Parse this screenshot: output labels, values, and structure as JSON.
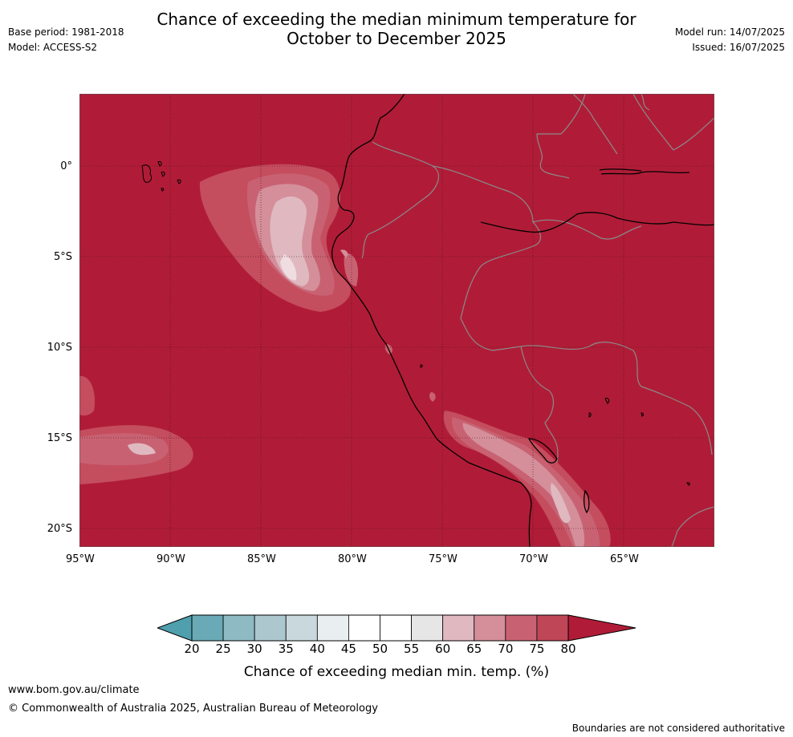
{
  "header": {
    "title_line1": "Chance of exceeding the median minimum temperature for",
    "title_line2": "October to December 2025",
    "base_period": "Base period: 1981-2018",
    "model": "Model: ACCESS-S2",
    "model_run": "Model run: 14/07/2025",
    "issued": "Issued: 16/07/2025"
  },
  "map": {
    "lat_labels": [
      "0°",
      "5°S",
      "10°S",
      "15°S",
      "20°S"
    ],
    "lon_labels": [
      "95°W",
      "90°W",
      "85°W",
      "80°W",
      "75°W",
      "70°W",
      "65°W"
    ],
    "background_color": "#b01c37"
  },
  "colorbar": {
    "ticks": [
      "20",
      "25",
      "30",
      "35",
      "40",
      "45",
      "50",
      "55",
      "60",
      "65",
      "70",
      "75",
      "80"
    ],
    "colors": [
      "#6aa9b6",
      "#8ebac4",
      "#acc8ce",
      "#c8d8dd",
      "#e9eff1",
      "#ffffff",
      "#ffffff",
      "#e6e6e6",
      "#e0b9c0",
      "#d48f9a",
      "#c86272",
      "#be4656"
    ],
    "low_extend_color": "#4f9fae",
    "high_extend_color": "#b01c37",
    "title": "Chance of exceeding median min. temp. (%)"
  },
  "footer": {
    "website": "www.bom.gov.au/climate",
    "copyright": "© Commonwealth of Australia 2025, Australian Bureau of Meteorology",
    "disclaimer": "Boundaries are not considered authoritative"
  }
}
